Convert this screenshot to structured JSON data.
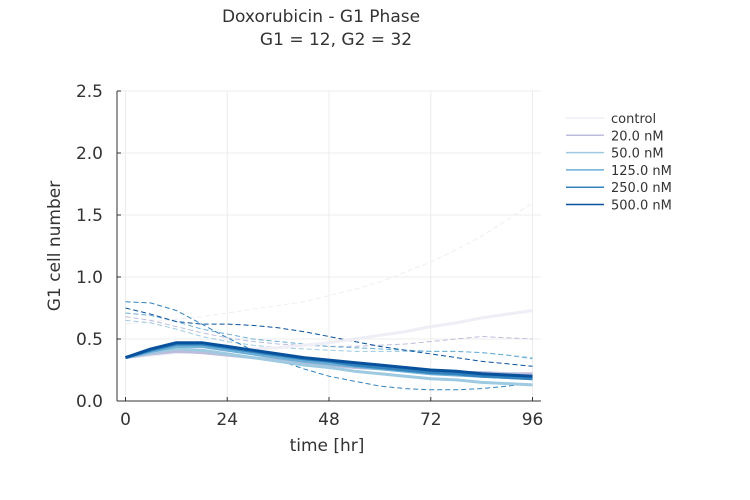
{
  "chart_data": {
    "type": "line",
    "title": "Doxorubicin - G1 Phase",
    "subtitle": "G1 = 12, G2 = 32",
    "xlabel": "time [hr]",
    "ylabel": "G1 cell number",
    "xlim": [
      -2,
      98
    ],
    "ylim": [
      0,
      2.5
    ],
    "xticks": [
      "0",
      "24",
      "48",
      "72",
      "96"
    ],
    "yticks": [
      "0.0",
      "0.5",
      "1.0",
      "1.5",
      "2.0",
      "2.5"
    ],
    "grid": true,
    "legend_position": "right",
    "x": [
      0,
      6,
      12,
      18,
      24,
      30,
      36,
      42,
      48,
      54,
      60,
      66,
      72,
      78,
      84,
      90,
      96
    ],
    "series": [
      {
        "name": "control",
        "color": "#efedf5",
        "fit": [
          0.35,
          0.37,
          0.39,
          0.4,
          0.41,
          0.42,
          0.43,
          0.45,
          0.47,
          0.5,
          0.53,
          0.56,
          0.6,
          0.63,
          0.67,
          0.7,
          0.73
        ],
        "data": [
          0.62,
          0.64,
          0.66,
          0.68,
          0.71,
          0.74,
          0.77,
          0.8,
          0.85,
          0.9,
          0.96,
          1.04,
          1.12,
          1.22,
          1.33,
          1.46,
          1.6
        ]
      },
      {
        "name": "20.0 nM",
        "color": "#bcbddc",
        "fit": [
          0.35,
          0.38,
          0.4,
          0.39,
          0.37,
          0.35,
          0.33,
          0.31,
          0.29,
          0.27,
          0.26,
          0.25,
          0.24,
          0.23,
          0.23,
          0.22,
          0.22
        ],
        "data": [
          0.68,
          0.65,
          0.6,
          0.55,
          0.51,
          0.48,
          0.46,
          0.45,
          0.44,
          0.44,
          0.45,
          0.46,
          0.48,
          0.5,
          0.52,
          0.51,
          0.5
        ]
      },
      {
        "name": "50.0 nM",
        "color": "#9ecae1",
        "fit": [
          0.35,
          0.39,
          0.42,
          0.41,
          0.38,
          0.35,
          0.32,
          0.29,
          0.27,
          0.24,
          0.22,
          0.2,
          0.18,
          0.17,
          0.15,
          0.14,
          0.13
        ],
        "data": [
          0.65,
          0.63,
          0.58,
          0.52,
          0.48,
          0.45,
          0.43,
          0.42,
          0.41,
          0.4,
          0.4,
          0.4,
          0.4,
          0.4,
          0.39,
          0.37,
          0.35
        ]
      },
      {
        "name": "125.0 nM",
        "color": "#6baed6",
        "fit": [
          0.35,
          0.4,
          0.44,
          0.44,
          0.41,
          0.38,
          0.35,
          0.32,
          0.3,
          0.28,
          0.26,
          0.24,
          0.22,
          0.21,
          0.2,
          0.19,
          0.18
        ],
        "data": [
          0.71,
          0.69,
          0.64,
          0.58,
          0.54,
          0.5,
          0.48,
          0.46,
          0.44,
          0.43,
          0.42,
          0.41,
          0.4,
          0.4,
          0.39,
          0.37,
          0.34
        ]
      },
      {
        "name": "250.0 nM",
        "color": "#3182bd",
        "fit": [
          0.35,
          0.41,
          0.46,
          0.46,
          0.43,
          0.4,
          0.37,
          0.34,
          0.32,
          0.29,
          0.27,
          0.25,
          0.23,
          0.22,
          0.2,
          0.19,
          0.18
        ],
        "data": [
          0.8,
          0.79,
          0.73,
          0.62,
          0.51,
          0.41,
          0.33,
          0.26,
          0.2,
          0.16,
          0.12,
          0.1,
          0.09,
          0.09,
          0.1,
          0.12,
          0.14
        ]
      },
      {
        "name": "500.0 nM",
        "color": "#08519c",
        "fit": [
          0.35,
          0.42,
          0.47,
          0.47,
          0.44,
          0.41,
          0.38,
          0.35,
          0.33,
          0.31,
          0.29,
          0.27,
          0.25,
          0.24,
          0.22,
          0.21,
          0.2
        ],
        "data": [
          0.75,
          0.7,
          0.64,
          0.62,
          0.62,
          0.61,
          0.59,
          0.56,
          0.52,
          0.48,
          0.44,
          0.41,
          0.38,
          0.35,
          0.32,
          0.3,
          0.28
        ]
      }
    ]
  }
}
